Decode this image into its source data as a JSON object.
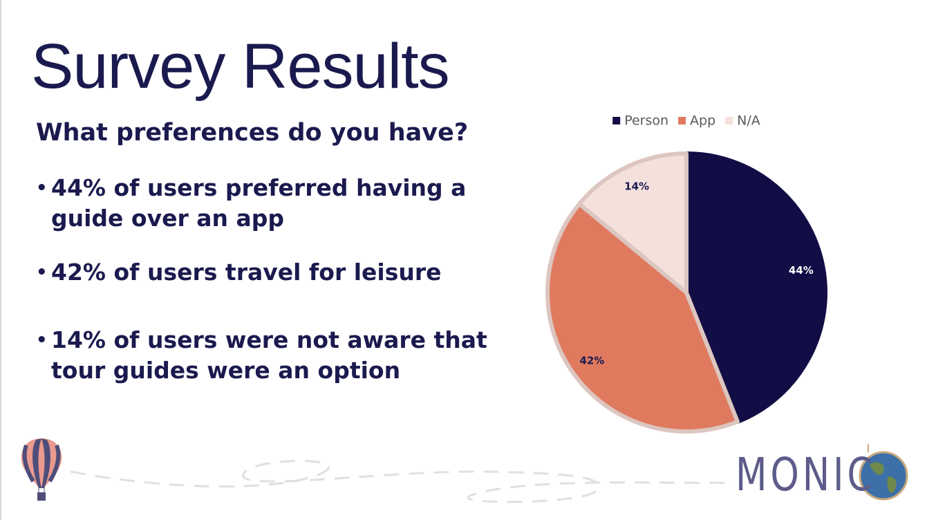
{
  "title": "Survey Results",
  "subtitle": "What preferences do you have?",
  "bullets": [
    "44% of users preferred having a guide over an app",
    "42% of users travel for leisure",
    "14% of users were not aware that tour guides were an option"
  ],
  "logo": "MONIC",
  "chart_data": {
    "type": "pie",
    "categories": [
      "Person",
      "App",
      "N/A"
    ],
    "values": [
      44,
      42,
      14
    ],
    "value_labels": [
      "44%",
      "42%",
      "14%"
    ],
    "colors": [
      "#120d45",
      "#e07a5f",
      "#f4e1dc"
    ],
    "legend": "top"
  }
}
